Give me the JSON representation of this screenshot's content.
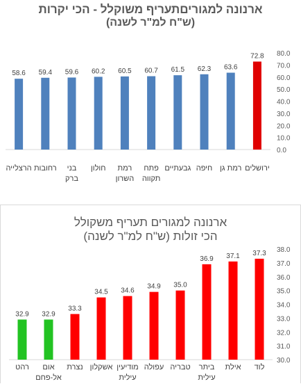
{
  "chart_data": [
    {
      "type": "bar",
      "title": "ארנונה למגוריםתעריף משוקלל - הכי יקרות",
      "subtitle": "(ש\"ח למ\"ר לשנה)",
      "categories": [
        "ירושלים",
        "רמת גן",
        "חיפה",
        "גבעתיים",
        "פתח תקווה",
        "רמת השרון",
        "חולון",
        "בני ברק",
        "רחובות",
        "הרצלייה"
      ],
      "values": [
        72.8,
        63.6,
        62.3,
        61.5,
        60.7,
        60.5,
        60.2,
        59.6,
        59.4,
        58.6
      ],
      "data_labels": [
        "72.8",
        "63.6",
        "62.3",
        "61.5",
        "60.7",
        "60.5",
        "60.2",
        "59.6",
        "59.4",
        "58.6"
      ],
      "bar_colors": [
        "#e00000",
        "#4f81bd",
        "#4f81bd",
        "#4f81bd",
        "#4f81bd",
        "#4f81bd",
        "#4f81bd",
        "#4f81bd",
        "#4f81bd",
        "#4f81bd"
      ],
      "ylim": [
        0,
        80
      ],
      "y_ticks": [
        "0.0",
        "10.0",
        "20.0",
        "30.0",
        "40.0",
        "50.0",
        "60.0",
        "70.0",
        "80.0"
      ],
      "y_axis_side": "right",
      "grid": false,
      "legend": "none"
    },
    {
      "type": "bar",
      "title": "ארנונה למגורים תעריף משקולל",
      "subtitle": "הכי זולות (ש\"ח למ\"ר לשנה)",
      "categories": [
        "לוד",
        "אילת",
        "ביתר עילית",
        "טבריה",
        "עפולה",
        "מודיעין עילית",
        "אשקלון",
        "נצרת",
        "אום אל-פחם",
        "רהט"
      ],
      "values": [
        37.3,
        37.1,
        36.9,
        35.0,
        34.9,
        34.6,
        34.5,
        33.3,
        32.9,
        32.9
      ],
      "data_labels": [
        "37.3",
        "37.1",
        "36.9",
        "35.0",
        "34.9",
        "34.6",
        "34.5",
        "33.3",
        "32.9",
        "32.9"
      ],
      "bar_colors": [
        "#ff0000",
        "#ff0000",
        "#ff0000",
        "#ff0000",
        "#ff0000",
        "#ff0000",
        "#ff0000",
        "#ff0000",
        "#22c322",
        "#22c322"
      ],
      "ylim": [
        30,
        38
      ],
      "y_ticks": [
        "30.0",
        "31.0",
        "32.0",
        "33.0",
        "34.0",
        "35.0",
        "36.0",
        "37.0",
        "38.0"
      ],
      "y_axis_side": "right",
      "grid": false,
      "legend": "none"
    }
  ]
}
